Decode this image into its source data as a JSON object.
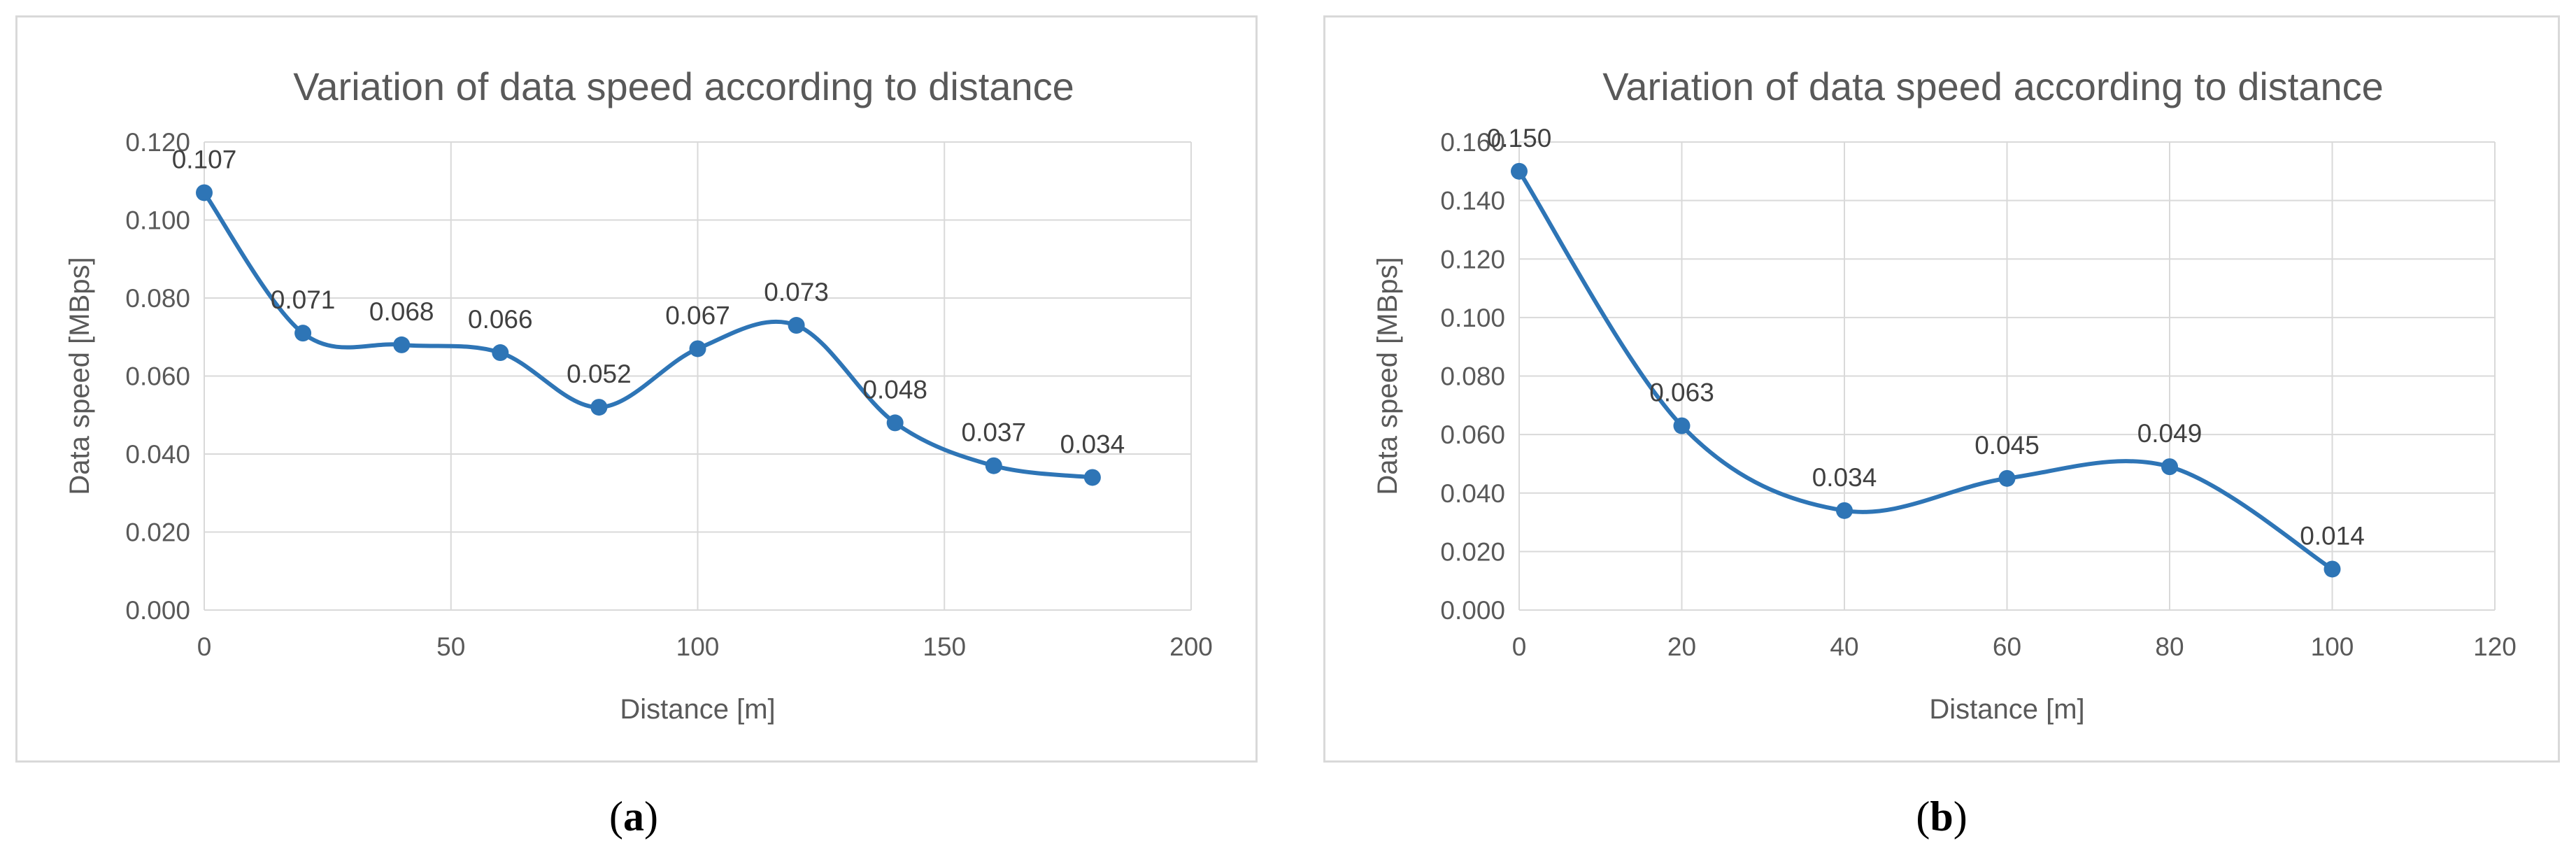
{
  "chart_data": [
    {
      "type": "line",
      "title": "Variation of data speed according to distance",
      "xlabel": "Distance [m]",
      "ylabel": "Data speed  [MBps]",
      "x": [
        0,
        20,
        40,
        60,
        80,
        100,
        120,
        140,
        160,
        180
      ],
      "values": [
        0.107,
        0.071,
        0.068,
        0.066,
        0.052,
        0.067,
        0.073,
        0.048,
        0.037,
        0.034
      ],
      "data_labels": [
        "0.107",
        "0.071",
        "0.068",
        "0.066",
        "0.052",
        "0.067",
        "0.073",
        "0.048",
        "0.037",
        "0.034"
      ],
      "xlim": [
        0,
        200
      ],
      "ylim": [
        0,
        0.12
      ],
      "x_ticks": [
        0,
        50,
        100,
        150,
        200
      ],
      "x_tick_labels": [
        "0",
        "50",
        "100",
        "150",
        "200"
      ],
      "y_ticks": [
        0,
        0.02,
        0.04,
        0.06,
        0.08,
        0.1,
        0.12
      ],
      "y_tick_labels": [
        "0.000",
        "0.020",
        "0.040",
        "0.060",
        "0.080",
        "0.100",
        "0.120"
      ],
      "grid": true,
      "smooth": true,
      "color": "#2e75b6"
    },
    {
      "type": "line",
      "title": "Variation of data speed according to distance",
      "xlabel": "Distance [m]",
      "ylabel": "Data speed  [MBps]",
      "x": [
        0,
        20,
        40,
        60,
        80,
        100
      ],
      "values": [
        0.15,
        0.063,
        0.034,
        0.045,
        0.049,
        0.014
      ],
      "data_labels": [
        "0.150",
        "0.063",
        "0.034",
        "0.045",
        "0.049",
        "0.014"
      ],
      "xlim": [
        0,
        120
      ],
      "ylim": [
        0,
        0.16
      ],
      "x_ticks": [
        0,
        20,
        40,
        60,
        80,
        100,
        120
      ],
      "x_tick_labels": [
        "0",
        "20",
        "40",
        "60",
        "80",
        "100",
        "120"
      ],
      "y_ticks": [
        0,
        0.02,
        0.04,
        0.06,
        0.08,
        0.1,
        0.12,
        0.14,
        0.16
      ],
      "y_tick_labels": [
        "0.000",
        "0.020",
        "0.040",
        "0.060",
        "0.080",
        "0.100",
        "0.120",
        "0.140",
        "0.160"
      ],
      "grid": true,
      "smooth": true,
      "color": "#2e75b6"
    }
  ],
  "captions": [
    {
      "letter": "a",
      "open": "(",
      "close": ")"
    },
    {
      "letter": "b",
      "open": "(",
      "close": ")"
    }
  ],
  "colors": {
    "line": "#2e75b6",
    "grid": "#d9d9d9",
    "text": "#595959",
    "border": "#d9d9d9"
  }
}
